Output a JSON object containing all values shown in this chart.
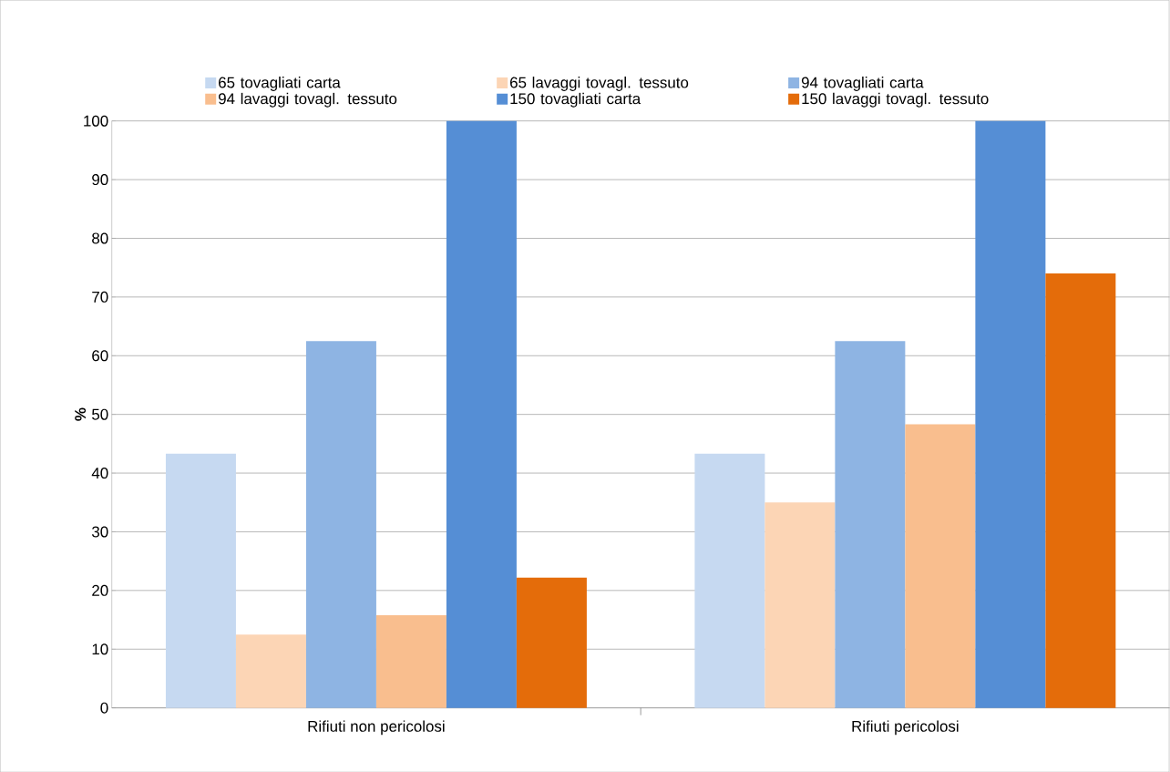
{
  "chart_data": {
    "type": "bar",
    "ylabel": "%",
    "categories": [
      "Rifiuti non pericolosi",
      "Rifiuti pericolosi"
    ],
    "series": [
      {
        "name": "65 tovagliati carta",
        "color": "#c6d9f1",
        "values": [
          43.3,
          43.3
        ]
      },
      {
        "name": "65 lavaggi tovagl. tessuto",
        "color": "#fcd5b5",
        "values": [
          12.5,
          35
        ]
      },
      {
        "name": "94 tovagliati carta",
        "color": "#8eb4e3",
        "values": [
          62.5,
          62.5
        ]
      },
      {
        "name": "94 lavaggi tovagl. tessuto",
        "color": "#f9be8e",
        "values": [
          15.8,
          48.3
        ]
      },
      {
        "name": "150 tovagliati carta",
        "color": "#558ed5",
        "values": [
          100,
          100
        ]
      },
      {
        "name": "150 lavaggi tovagl. tessuto",
        "color": "#e46c0a",
        "values": [
          22.2,
          74
        ]
      }
    ],
    "ylim": [
      0,
      100
    ],
    "yticks": [
      0,
      10,
      20,
      30,
      40,
      50,
      60,
      70,
      80,
      90,
      100
    ],
    "grid": "y",
    "legend": "top"
  }
}
